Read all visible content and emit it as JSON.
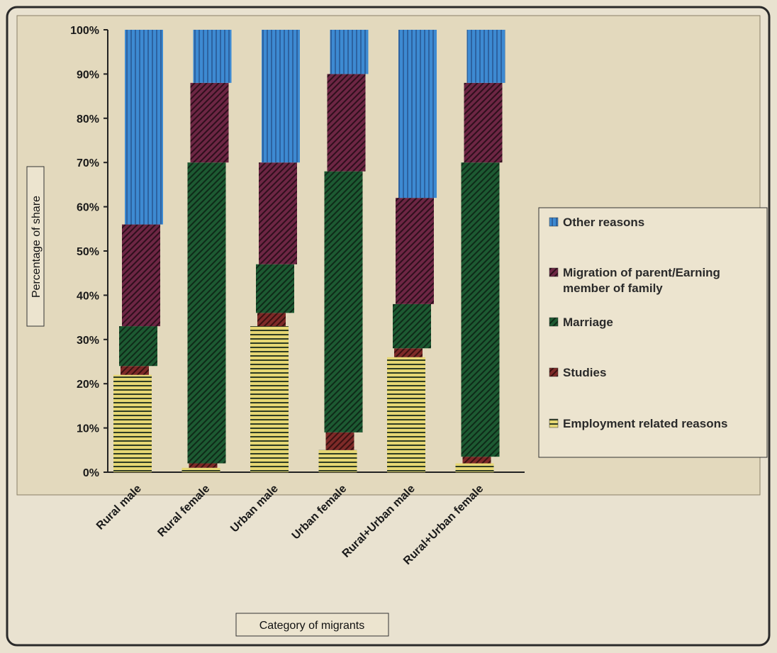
{
  "chart_data": {
    "type": "bar",
    "stacked": true,
    "xlabel": "Category of migrants",
    "ylabel": "Percentage of share",
    "ylim": [
      0,
      100
    ],
    "y_ticks": [
      "0%",
      "10%",
      "20%",
      "30%",
      "40%",
      "50%",
      "60%",
      "70%",
      "80%",
      "90%",
      "100%"
    ],
    "grid": false,
    "legend_position": "right",
    "categories": [
      "Rural male",
      "Rural female",
      "Urban male",
      "Urban female",
      "Rural+Urban male",
      "Rural+Urban female"
    ],
    "series": [
      {
        "name": "Employment related  reasons",
        "color": "#e3d36a",
        "values": [
          22,
          1,
          33,
          5,
          26,
          2
        ]
      },
      {
        "name": "Studies",
        "color": "#7a2a2a",
        "values": [
          2,
          1,
          3,
          4,
          2,
          1.5
        ]
      },
      {
        "name": "Marriage",
        "color": "#1f5a34",
        "values": [
          9,
          68,
          11,
          59,
          10,
          66.5
        ]
      },
      {
        "name": "Migration of parent/Earning member of family",
        "color": "#6b2440",
        "values": [
          23,
          18,
          23,
          22,
          24,
          18
        ]
      },
      {
        "name": "Other reasons",
        "color": "#3f86cc",
        "values": [
          44,
          12,
          30,
          10,
          38,
          12
        ]
      }
    ],
    "legend_order": [
      4,
      3,
      2,
      1,
      0
    ],
    "legend_lines": [
      [
        "Other reasons"
      ],
      [
        "Migration of parent/Earning",
        "member of family"
      ],
      [
        "Marriage"
      ],
      [
        "Studies"
      ],
      [
        "Employment related  reasons"
      ]
    ]
  }
}
